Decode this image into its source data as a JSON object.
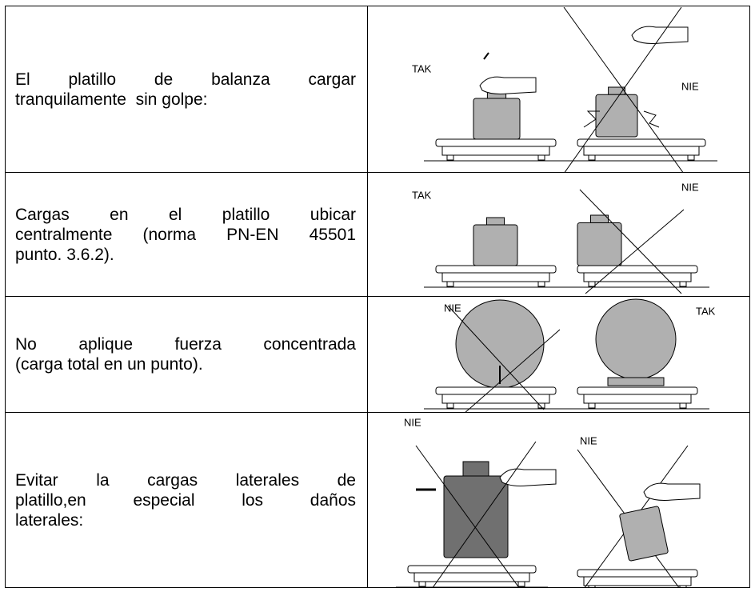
{
  "rows": [
    {
      "text_lines": [
        "El platillo de balanza cargar",
        "tranquilamente  sin golpe:"
      ],
      "labels": [
        "TAK",
        "NIE"
      ]
    },
    {
      "text_lines": [
        "Cargas en el platillo ubicar",
        "centralmente (norma PN-EN 45501",
        "punto. 3.6.2)."
      ],
      "labels": [
        "TAK",
        "NIE"
      ]
    },
    {
      "text_lines": [
        "No aplique fuerza concentrada",
        "(carga total en un punto)."
      ],
      "labels": [
        "NIE",
        "TAK"
      ]
    },
    {
      "text_lines": [
        "Evitar la cargas laterales de",
        "platillo,en especial los daños",
        "laterales:"
      ],
      "labels": [
        "NIE",
        "NIE"
      ]
    }
  ]
}
